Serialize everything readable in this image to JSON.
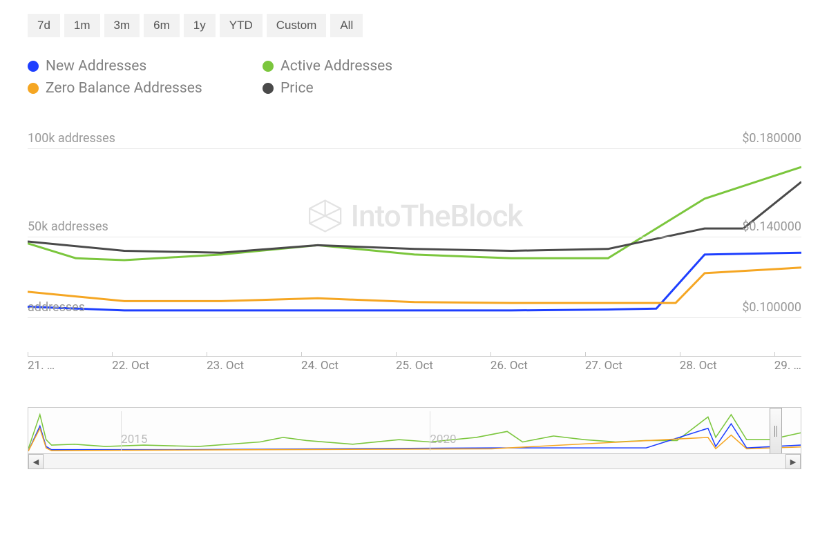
{
  "range_buttons": [
    "7d",
    "1m",
    "3m",
    "6m",
    "1y",
    "YTD",
    "Custom",
    "All"
  ],
  "legend": [
    {
      "label": "New Addresses",
      "color": "#1e3fff"
    },
    {
      "label": "Active Addresses",
      "color": "#7bc63d"
    },
    {
      "label": "Zero Balance Addresses",
      "color": "#f5a623"
    },
    {
      "label": "Price",
      "color": "#4a4a4a"
    }
  ],
  "watermark_text": "IntoTheBlock",
  "chart": {
    "type": "line",
    "x_labels": [
      "21. …",
      "22. Oct",
      "23. Oct",
      "24. Oct",
      "25. Oct",
      "26. Oct",
      "27. Oct",
      "28. Oct",
      "29. …"
    ],
    "y_left": {
      "labels": [
        "100k addresses",
        "50k addresses",
        "addresses"
      ],
      "positions": [
        0,
        128,
        245
      ],
      "min": 0,
      "max": 100
    },
    "y_right": {
      "labels": [
        "$0.180000",
        "$0.140000",
        "$0.100000"
      ],
      "positions": [
        0,
        128,
        245
      ],
      "min": 0.1,
      "max": 0.18
    },
    "gridlines": [
      25,
      153,
      270
    ],
    "series": {
      "new_addresses": {
        "color": "#1e3fff",
        "width": 3,
        "points": [
          [
            0,
            0.15
          ],
          [
            1,
            0.13
          ],
          [
            2,
            0.13
          ],
          [
            3,
            0.13
          ],
          [
            4,
            0.13
          ],
          [
            5,
            0.13
          ],
          [
            6,
            0.135
          ],
          [
            6.5,
            0.14
          ],
          [
            7,
            0.43
          ],
          [
            8,
            0.44
          ]
        ]
      },
      "active_addresses": {
        "color": "#7bc63d",
        "width": 3,
        "points": [
          [
            0,
            0.49
          ],
          [
            0.5,
            0.41
          ],
          [
            1,
            0.4
          ],
          [
            2,
            0.43
          ],
          [
            3,
            0.48
          ],
          [
            4,
            0.43
          ],
          [
            5,
            0.41
          ],
          [
            6,
            0.41
          ],
          [
            7,
            0.73
          ],
          [
            8,
            0.9
          ]
        ]
      },
      "zero_balance": {
        "color": "#f5a623",
        "width": 3,
        "points": [
          [
            0,
            0.23
          ],
          [
            1,
            0.18
          ],
          [
            2,
            0.18
          ],
          [
            3,
            0.195
          ],
          [
            4,
            0.175
          ],
          [
            5,
            0.17
          ],
          [
            6,
            0.17
          ],
          [
            6.7,
            0.17
          ],
          [
            7,
            0.33
          ],
          [
            8,
            0.36
          ]
        ]
      },
      "price": {
        "color": "#4a4a4a",
        "width": 3,
        "points": [
          [
            0,
            0.5
          ],
          [
            1,
            0.45
          ],
          [
            2,
            0.44
          ],
          [
            3,
            0.48
          ],
          [
            4,
            0.46
          ],
          [
            5,
            0.45
          ],
          [
            6,
            0.46
          ],
          [
            7,
            0.57
          ],
          [
            7.4,
            0.57
          ],
          [
            8,
            0.82
          ]
        ]
      }
    },
    "grid_color": "#e8e8e8",
    "label_fontsize": 18,
    "label_color": "#999"
  },
  "timeline": {
    "labels": [
      {
        "text": "2015",
        "x_pct": 12
      },
      {
        "text": "2020",
        "x_pct": 52
      }
    ],
    "dividers": [
      12,
      52
    ],
    "handle_position_pct": 96,
    "mini_series": {
      "active": {
        "color": "#7bc63d",
        "points": [
          [
            0,
            0.1
          ],
          [
            1.5,
            0.85
          ],
          [
            2.3,
            0.3
          ],
          [
            3,
            0.18
          ],
          [
            6,
            0.2
          ],
          [
            10,
            0.15
          ],
          [
            15,
            0.18
          ],
          [
            22,
            0.15
          ],
          [
            30,
            0.25
          ],
          [
            33,
            0.35
          ],
          [
            36,
            0.28
          ],
          [
            42,
            0.2
          ],
          [
            48,
            0.3
          ],
          [
            52,
            0.25
          ],
          [
            58,
            0.35
          ],
          [
            62,
            0.48
          ],
          [
            64,
            0.25
          ],
          [
            68,
            0.38
          ],
          [
            72,
            0.3
          ],
          [
            76,
            0.25
          ],
          [
            80,
            0.28
          ],
          [
            84,
            0.28
          ],
          [
            88,
            0.8
          ],
          [
            89,
            0.35
          ],
          [
            91,
            0.85
          ],
          [
            93,
            0.3
          ],
          [
            96,
            0.3
          ],
          [
            100,
            0.45
          ]
        ]
      },
      "new": {
        "color": "#1e3fff",
        "points": [
          [
            0,
            0.05
          ],
          [
            1.5,
            0.6
          ],
          [
            2.3,
            0.15
          ],
          [
            3,
            0.08
          ],
          [
            20,
            0.08
          ],
          [
            40,
            0.1
          ],
          [
            60,
            0.12
          ],
          [
            80,
            0.12
          ],
          [
            88,
            0.55
          ],
          [
            89,
            0.15
          ],
          [
            91,
            0.65
          ],
          [
            93,
            0.12
          ],
          [
            100,
            0.18
          ]
        ]
      },
      "zero": {
        "color": "#f5a623",
        "points": [
          [
            0,
            0.05
          ],
          [
            1.5,
            0.55
          ],
          [
            2.3,
            0.12
          ],
          [
            3,
            0.06
          ],
          [
            30,
            0.08
          ],
          [
            60,
            0.1
          ],
          [
            88,
            0.35
          ],
          [
            89,
            0.1
          ],
          [
            91,
            0.4
          ],
          [
            93,
            0.1
          ],
          [
            100,
            0.14
          ]
        ]
      }
    }
  }
}
